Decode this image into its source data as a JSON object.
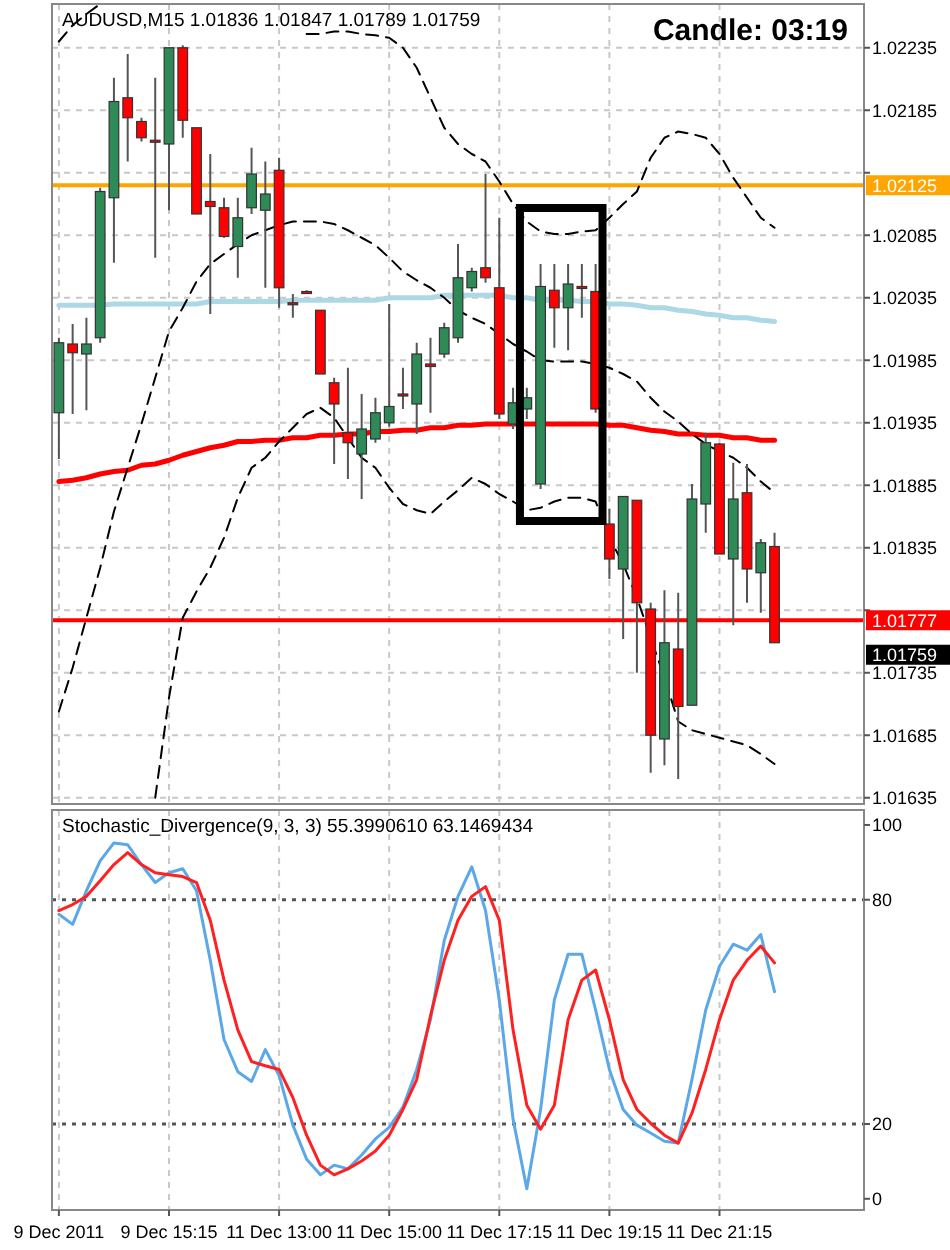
{
  "chart_data": [
    {
      "type": "candlestick",
      "title": "AUDUSD,M15 1.01836 1.01847 1.01789 1.01759",
      "annotations": [
        "Candle: 03:19",
        "1.01759"
      ],
      "categories": [
        null,
        null,
        null,
        null,
        null,
        null,
        null,
        null,
        null,
        null,
        null,
        null,
        null,
        null,
        null,
        null,
        null,
        null,
        null,
        null,
        null,
        null,
        null,
        null,
        null,
        null,
        null,
        null,
        null,
        null,
        null,
        null,
        null,
        null,
        null,
        null,
        null,
        null,
        null,
        null,
        null,
        null,
        null,
        null,
        null,
        null,
        null,
        null,
        null,
        null,
        null,
        null,
        null,
        null,
        null,
        null,
        null,
        null,
        null
      ],
      "ohlc": [
        [
          1.01943,
          1.02003,
          1.01906,
          1.01999
        ],
        [
          1.01998,
          1.02014,
          1.01942,
          1.01991
        ],
        [
          1.0199,
          1.02019,
          1.01945,
          1.01998
        ],
        [
          1.02003,
          1.02123,
          1.01999,
          1.0212
        ],
        [
          1.02115,
          1.02211,
          1.02063,
          1.02192
        ],
        [
          1.02195,
          1.0223,
          1.02144,
          1.02179
        ],
        [
          1.02176,
          1.02179,
          1.0216,
          1.02163
        ],
        [
          1.02161,
          1.02211,
          1.02067,
          1.0216
        ],
        [
          1.02158,
          1.02235,
          1.02105,
          1.02235
        ],
        [
          1.02235,
          1.02237,
          1.02163,
          1.02177
        ],
        [
          1.02171,
          1.02171,
          1.02102,
          1.02102
        ],
        [
          1.02112,
          1.0215,
          1.02022,
          1.02108
        ],
        [
          1.02107,
          1.02115,
          1.02083,
          1.02084
        ],
        [
          1.02076,
          1.02115,
          1.02051,
          1.02099
        ],
        [
          1.02107,
          1.02155,
          1.02102,
          1.02134
        ],
        [
          1.02105,
          1.02144,
          1.02043,
          1.02118
        ],
        [
          1.02137,
          1.02147,
          1.02027,
          1.02043
        ],
        [
          1.02031,
          1.02038,
          1.02019,
          1.0203
        ],
        [
          1.0204,
          1.02041,
          1.02038,
          1.02039
        ],
        [
          1.02025,
          1.02025,
          1.01974,
          1.01974
        ],
        [
          1.01967,
          1.01971,
          1.01902,
          1.0195
        ],
        [
          1.01927,
          1.01979,
          1.0189,
          1.01919
        ],
        [
          1.0191,
          1.01958,
          1.01874,
          1.0193
        ],
        [
          1.01922,
          1.01955,
          1.01919,
          1.01943
        ],
        [
          1.01935,
          1.0203,
          1.01932,
          1.01948
        ],
        [
          1.01958,
          1.01979,
          1.01946,
          1.01957
        ],
        [
          1.0195,
          1.01999,
          1.01926,
          1.0199
        ],
        [
          1.01982,
          1.02003,
          1.01943,
          1.0198
        ],
        [
          1.0199,
          1.02015,
          1.01987,
          1.02011
        ],
        [
          1.02003,
          1.02078,
          1.01999,
          1.02051
        ],
        [
          1.02043,
          1.02059,
          1.0204,
          1.02056
        ],
        [
          1.02059,
          1.02134,
          1.02047,
          1.02051
        ],
        [
          1.02043,
          1.02099,
          1.01938,
          1.01942
        ],
        [
          1.01934,
          1.01963,
          1.0193,
          1.01951
        ],
        [
          1.01946,
          1.01963,
          1.01938,
          1.01955
        ],
        [
          1.01886,
          1.02062,
          1.01882,
          1.02044
        ],
        [
          1.02041,
          1.02062,
          1.01995,
          1.02027
        ],
        [
          1.02027,
          1.02062,
          1.01993,
          1.02046
        ],
        [
          1.02044,
          1.02062,
          1.02019,
          1.02043
        ],
        [
          1.0204,
          1.02062,
          1.01943,
          1.01946
        ],
        [
          1.01854,
          1.01866,
          1.0181,
          1.01826
        ],
        [
          1.01818,
          1.01876,
          1.01762,
          1.01876
        ],
        [
          1.01873,
          1.01873,
          1.01735,
          1.01791
        ],
        [
          1.01786,
          1.01791,
          1.01655,
          1.01685
        ],
        [
          1.01682,
          1.01801,
          1.01661,
          1.01759
        ],
        [
          1.01754,
          1.01799,
          1.0165,
          1.01708
        ],
        [
          1.01709,
          1.01886,
          1.01709,
          1.01874
        ],
        [
          1.0187,
          1.01927,
          1.01847,
          1.01919
        ],
        [
          1.01918,
          1.01919,
          1.0183,
          1.0183
        ],
        [
          1.01826,
          1.01903,
          1.01773,
          1.01874
        ],
        [
          1.01879,
          1.01902,
          1.01791,
          1.01818
        ],
        [
          1.01815,
          1.01842,
          1.01783,
          1.01839
        ],
        [
          1.01836,
          1.01847,
          1.01759,
          1.01759
        ],
        null,
        null,
        null,
        null,
        null,
        null
      ],
      "colors": [
        "#2e8b57",
        "#ff0000",
        "#2e8b57",
        "#2e8b57",
        "#2e8b57",
        "#ff0000",
        "#ff0000",
        "#ff0000",
        "#2e8b57",
        "#ff0000",
        "#ff0000",
        "#ff0000",
        "#ff0000",
        "#2e8b57",
        "#2e8b57",
        "#2e8b57",
        "#ff0000",
        "#ff0000",
        "#ff0000",
        "#ff0000",
        "#ff0000",
        "#ff0000",
        "#2e8b57",
        "#2e8b57",
        "#2e8b57",
        "#ff0000",
        "#2e8b57",
        "#ff0000",
        "#2e8b57",
        "#2e8b57",
        "#2e8b57",
        "#ff0000",
        "#ff0000",
        "#2e8b57",
        "#2e8b57",
        "#2e8b57",
        "#ff0000",
        "#2e8b57",
        "#ff0000",
        "#ff0000",
        "#ff0000",
        "#2e8b57",
        "#ff0000",
        "#ff0000",
        "#2e8b57",
        "#ff0000",
        "#2e8b57",
        "#2e8b57",
        "#ff0000",
        "#2e8b57",
        "#ff0000",
        "#2e8b57",
        "#ff0000",
        null,
        null,
        null,
        null,
        null,
        null
      ],
      "series": [
        {
          "type": "line",
          "color": "#ff0000",
          "values": [
            1.01888,
            1.01889,
            1.01891,
            1.01894,
            1.01896,
            1.01897,
            1.01901,
            1.01902,
            1.01905,
            1.01909,
            1.01912,
            1.01915,
            1.01917,
            1.0192,
            1.0192,
            1.01921,
            1.01921,
            1.01923,
            1.01923,
            1.01925,
            1.01925,
            1.01926,
            1.01926,
            1.01928,
            1.01928,
            1.01929,
            1.01929,
            1.01931,
            1.01931,
            1.01933,
            1.01933,
            1.01934,
            1.01934,
            1.01934,
            1.01934,
            1.01934,
            1.01934,
            1.01934,
            1.01934,
            1.01934,
            1.01933,
            1.01933,
            1.01931,
            1.01929,
            1.01928,
            1.01926,
            1.01926,
            1.01925,
            1.01925,
            1.01923,
            1.01923,
            1.01921,
            1.01921,
            null,
            null,
            null,
            null,
            null,
            null
          ]
        },
        {
          "type": "line",
          "color": "#add8e6",
          "values": [
            1.02029,
            1.02029,
            1.02029,
            1.02029,
            1.0203,
            1.0203,
            1.0203,
            1.0203,
            1.0203,
            1.0203,
            1.0203,
            1.02032,
            1.02032,
            1.02032,
            1.02032,
            1.02032,
            1.02032,
            1.02033,
            1.02033,
            1.02033,
            1.02033,
            1.02033,
            1.02033,
            1.02033,
            1.02035,
            1.02035,
            1.02035,
            1.02035,
            1.02037,
            1.02037,
            1.02037,
            1.02037,
            1.02037,
            1.02035,
            1.02035,
            1.02033,
            1.02033,
            1.02033,
            1.02032,
            1.02032,
            1.0203,
            1.0203,
            1.02029,
            1.02027,
            1.02027,
            1.02025,
            1.02024,
            1.02022,
            1.02021,
            1.02019,
            1.02019,
            1.02017,
            1.02016,
            null,
            null,
            null,
            null,
            null,
            null
          ]
        },
        {
          "type": "line",
          "color": "#000000",
          "line_style": "dashed",
          "values": [
            1.0224,
            1.02253,
            1.02262,
            1.0227,
            null,
            null,
            null,
            null,
            null,
            null,
            null,
            null,
            null,
            null,
            null,
            null,
            null,
            null,
            1.02246,
            1.02246,
            1.02248,
            1.02248,
            1.02246,
            1.02245,
            1.02243,
            1.02235,
            1.02219,
            1.02195,
            1.02171,
            1.02158,
            1.0215,
            1.02144,
            1.02128,
            1.0211,
            1.02096,
            1.02088,
            1.02086,
            1.02086,
            1.02088,
            1.02089,
            1.02099,
            1.0211,
            1.0212,
            1.02147,
            1.02163,
            1.02168,
            1.02166,
            1.02163,
            1.0215,
            1.02131,
            1.02115,
            1.02099,
            1.02091,
            null,
            null,
            null,
            null,
            null,
            null
          ]
        },
        {
          "type": "line",
          "color": "#000000",
          "line_style": "dashed",
          "values": [
            1.01704,
            1.01739,
            1.01779,
            1.01819,
            1.01864,
            1.01899,
            1.01934,
            1.01971,
            1.02008,
            1.02027,
            1.02048,
            1.02062,
            1.0207,
            1.02078,
            1.02085,
            1.02089,
            1.02093,
            1.02096,
            1.02096,
            1.02096,
            1.02094,
            1.02089,
            1.02083,
            1.02077,
            1.02067,
            1.02056,
            1.02049,
            1.02043,
            1.02035,
            1.02025,
            1.02019,
            1.02014,
            1.02006,
            1.01998,
            1.01992,
            1.01985,
            1.01984,
            1.01984,
            1.01984,
            1.01982,
            1.01979,
            1.01974,
            1.01968,
            1.01955,
            1.01944,
            1.01936,
            1.01926,
            1.01918,
            1.01912,
            1.01907,
            1.01899,
            1.01888,
            1.01879,
            null,
            null,
            null,
            null,
            null,
            null
          ]
        },
        {
          "type": "line",
          "color": "#000000",
          "line_style": "dashed",
          "values": [
            null,
            null,
            null,
            null,
            null,
            null,
            null,
            1.01635,
            1.01715,
            1.01779,
            1.018,
            1.01819,
            1.01843,
            1.01875,
            1.01899,
            1.01907,
            1.0192,
            1.01931,
            1.01942,
            1.01947,
            1.01939,
            1.01923,
            1.01907,
            1.01899,
            1.01883,
            1.0187,
            1.01865,
            1.01862,
            1.01872,
            1.01881,
            1.01891,
            1.01886,
            1.01878,
            1.01872,
            1.01865,
            1.01867,
            1.01872,
            1.01875,
            1.01875,
            1.01872,
            1.01843,
            1.01822,
            1.01795,
            1.01763,
            1.01731,
            1.01696,
            1.01689,
            1.01686,
            1.01683,
            1.0168,
            1.01677,
            1.0167,
            1.01662,
            null,
            null,
            null,
            null,
            null,
            null
          ]
        }
      ],
      "ref_lines": [
        {
          "axis": "y",
          "value": 1.02125,
          "label": "1.02125",
          "color": "#ffa500"
        },
        {
          "axis": "y",
          "value": 1.01777,
          "label": "1.01777",
          "color": "#ff0000"
        }
      ],
      "ylim": [
        1.0163,
        1.0227
      ],
      "yticks": [
        1.01635,
        1.01685,
        1.01735,
        {
          "value": 1.01785,
          "label": null
        },
        1.01835,
        1.01885,
        1.01935,
        1.01985,
        1.02035,
        1.02085,
        {
          "value": 1.02135,
          "label": null
        },
        1.02185,
        1.02235
      ],
      "grid": true,
      "tick_labels": "y"
    },
    {
      "type": "line",
      "title": "Stochastic_Divergence(9, 3, 3) 55.3990610 63.1469434",
      "categories": [
        "9 Dec 2011",
        null,
        null,
        null,
        null,
        null,
        null,
        null,
        "9 Dec 15:15",
        null,
        null,
        null,
        null,
        null,
        null,
        null,
        "11 Dec 13:00",
        null,
        null,
        null,
        null,
        null,
        null,
        null,
        "11 Dec 15:00",
        null,
        null,
        null,
        null,
        null,
        null,
        null,
        "11 Dec 17:15",
        null,
        null,
        null,
        null,
        null,
        null,
        null,
        "11 Dec 19:15",
        null,
        null,
        null,
        null,
        null,
        null,
        null,
        "11 Dec 21:15",
        null,
        null,
        null,
        null,
        null,
        null,
        null,
        null,
        null,
        null
      ],
      "series": [
        {
          "color": "#5aa8e8",
          "values": [
            76.1,
            73.4,
            82.4,
            90.4,
            95.2,
            94.7,
            89.4,
            84.6,
            87.2,
            88.3,
            82.4,
            63.8,
            42.6,
            34.0,
            31.4,
            39.9,
            33.0,
            19.7,
            10.6,
            6.4,
            9.0,
            8.0,
            11.7,
            16.0,
            19.1,
            24.5,
            34.6,
            47.9,
            69.1,
            80.9,
            88.8,
            77.1,
            53.2,
            21.3,
            2.7,
            23.9,
            53.2,
            65.4,
            65.4,
            50.5,
            34.6,
            23.9,
            19.7,
            17.6,
            15.4,
            14.9,
            31.9,
            50.5,
            62.2,
            68.1,
            66.5,
            70.7,
            55.4,
            null,
            null,
            null,
            null,
            null,
            null
          ]
        },
        {
          "color": "#ff2020",
          "values": [
            77.1,
            78.7,
            80.9,
            85.1,
            89.4,
            92.6,
            89.4,
            87.2,
            86.7,
            86.2,
            84.6,
            74.5,
            58.5,
            45.2,
            36.7,
            35.6,
            34.6,
            27.1,
            17.0,
            9.0,
            6.4,
            8.0,
            10.1,
            12.8,
            17.0,
            23.9,
            31.9,
            48.9,
            63.8,
            74.5,
            80.9,
            83.5,
            74.5,
            45.2,
            25.0,
            18.6,
            25.0,
            47.9,
            58.5,
            61.2,
            47.9,
            31.9,
            23.9,
            20.2,
            17.0,
            14.9,
            22.9,
            34.6,
            47.9,
            58.5,
            63.8,
            67.6,
            63.1,
            null,
            null,
            null,
            null,
            null,
            null
          ]
        }
      ],
      "ref_lines": [
        {
          "axis": "y",
          "value": 20,
          "color": "#555555",
          "line_style": "dotted"
        },
        {
          "axis": "y",
          "value": 80,
          "color": "#555555",
          "line_style": "dotted"
        }
      ],
      "ylim": [
        -3,
        104
      ],
      "yticks": [
        0,
        20,
        80,
        100
      ],
      "grid": "x"
    }
  ]
}
